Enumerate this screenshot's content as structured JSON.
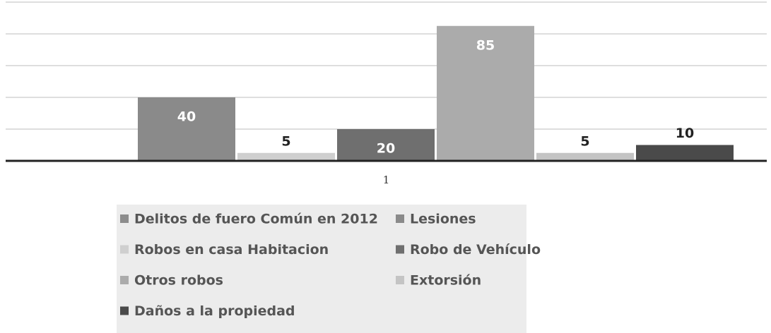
{
  "chart_data": {
    "type": "bar",
    "categories": [
      "1"
    ],
    "series": [
      {
        "name": "Delitos de fuero Común en 2012",
        "color": "#8c8c8c",
        "values": [
          null
        ]
      },
      {
        "name": "Lesiones",
        "color": "#8a8a8a",
        "values": [
          40
        ]
      },
      {
        "name": "Robos en casa Habitacion",
        "color": "#cfcfcf",
        "values": [
          5
        ]
      },
      {
        "name": "Robo de Vehículo",
        "color": "#6f6f6f",
        "values": [
          20
        ]
      },
      {
        "name": "Otros robos",
        "color": "#ababab",
        "values": [
          85
        ]
      },
      {
        "name": "Extorsión",
        "color": "#c4c4c4",
        "values": [
          5
        ]
      },
      {
        "name": "Daños a la propiedad",
        "color": "#4a4a4a",
        "values": [
          10
        ]
      }
    ],
    "ylim": [
      0,
      100
    ],
    "yticks": [
      0,
      20,
      40,
      60,
      80,
      100
    ],
    "grid": true,
    "legend": "bottom"
  }
}
